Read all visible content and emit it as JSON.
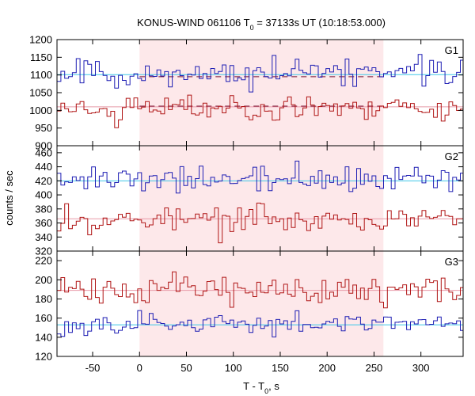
{
  "chart_data": {
    "type": "line",
    "title_main": "KONUS-WIND 061106 T",
    "title_sub": "0",
    "title_rest": " = 37133s UT (10:18:53.000)",
    "xlabel_main": "T - T",
    "xlabel_sub": "0",
    "xlabel_rest": ", s",
    "ylabel": "counts / sec",
    "xlim": [
      -88,
      345
    ],
    "xticks": [
      "-50",
      "0",
      "50",
      "100",
      "150",
      "200",
      "250",
      "300"
    ],
    "xtick_values": [
      -50,
      0,
      50,
      100,
      150,
      200,
      250,
      300
    ],
    "shaded_interval": [
      0,
      260
    ],
    "colors": {
      "blue": "#1f1fb4",
      "red": "#b01616",
      "blue_level": "#40c8e8",
      "red_level": "#e89aa8",
      "shade": "#fde8ea",
      "dashed": "#7a1030"
    },
    "bin_width": 4.096,
    "panels": [
      {
        "label": "G1",
        "ylim": [
          900,
          1200
        ],
        "yticks": [
          "900",
          "950",
          "1000",
          "1050",
          "1100",
          "1150",
          "1200"
        ],
        "ytick_values": [
          900,
          950,
          1000,
          1050,
          1100,
          1150,
          1200
        ],
        "series": [
          {
            "color": "blue",
            "mean": 1105,
            "amp": 28,
            "seed": 11,
            "level": 1101,
            "dashed_level": 1095
          },
          {
            "color": "red",
            "mean": 1010,
            "amp": 28,
            "seed": 23,
            "level": 1010,
            "dashed_level": 1012
          }
        ]
      },
      {
        "label": "G2",
        "ylim": [
          320,
          470
        ],
        "yticks": [
          "320",
          "340",
          "360",
          "380",
          "400",
          "420",
          "440",
          "460"
        ],
        "ytick_values": [
          320,
          340,
          360,
          380,
          400,
          420,
          440,
          460
        ],
        "series": [
          {
            "color": "blue",
            "mean": 421,
            "amp": 14,
            "seed": 37,
            "level": 420
          },
          {
            "color": "red",
            "mean": 365,
            "amp": 12,
            "seed": 53,
            "level": 366
          }
        ]
      },
      {
        "label": "G3",
        "ylim": [
          120,
          230
        ],
        "yticks": [
          "120",
          "140",
          "160",
          "180",
          "200",
          "220"
        ],
        "ytick_values": [
          120,
          140,
          160,
          180,
          200,
          220
        ],
        "series": [
          {
            "color": "red",
            "mean": 190,
            "amp": 11,
            "seed": 71,
            "level": 189
          },
          {
            "color": "blue",
            "mean": 153,
            "amp": 8,
            "seed": 97,
            "level": 153
          }
        ]
      }
    ]
  }
}
